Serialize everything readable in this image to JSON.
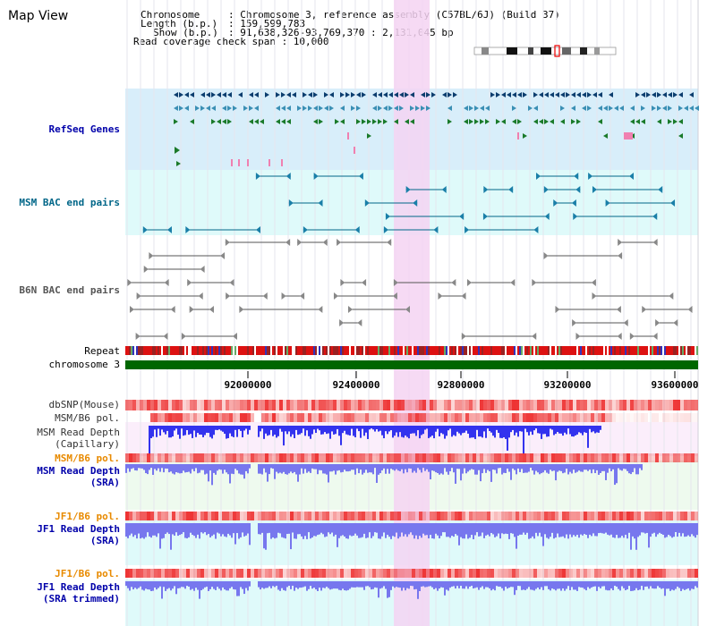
{
  "page_title": "Map View",
  "info": {
    "chromosome_key": "Chromosome",
    "chromosome_val": ": Chromosome 3, reference assembly (C57BL/6J) (Build 37)",
    "length_key": "Length (b.p.)",
    "length_val": ": 159,599,783",
    "show_key": "Show (b.p.)",
    "show_val": ": 91,638,326-93,769,370 : 2,131,045 bp",
    "coverage": "Read coverage check span : 10,000"
  },
  "tracks": {
    "refseq": "RefSeq Genes",
    "msm_bac": "MSM BAC end pairs",
    "b6n_bac": "B6N BAC end pairs",
    "repeat": "Repeat",
    "chromosome": "chromosome 3",
    "dbsnp": "dbSNP(Mouse)",
    "msm_pol": "MSM/B6 pol.",
    "msm_depth_cap_1": "MSM Read Depth",
    "msm_depth_cap_2": "(Capillary)",
    "msm_pol_2": "MSM/B6 pol.",
    "msm_depth_sra_1": "MSM Read Depth",
    "msm_depth_sra_2": "(SRA)",
    "jf1_pol": "JF1/B6 pol.",
    "jf1_depth_sra_1": "JF1 Read Depth",
    "jf1_depth_sra_2": "(SRA)",
    "jf1_pol_2": "JF1/B6 pol.",
    "jf1_depth_trim_1": "JF1 Read Depth",
    "jf1_depth_trim_2": "(SRA trimmed)"
  },
  "axis_ticks": [
    "92000000",
    "92400000",
    "92800000",
    "93200000",
    "93600000"
  ],
  "colors": {
    "refseq_bg": "#d8eefa",
    "msm_bac_bg": "#dffafa",
    "highlight": "#f4d4f2",
    "chromosome_bar": "#006600",
    "depth_blue": "#3333ee",
    "depth_lightblue": "#7777ee",
    "pol_red": "#ee3333",
    "bac_blue": "#006688",
    "gene_green": "#006600"
  },
  "icons": [
    "chromosome-ideogram-icon"
  ]
}
